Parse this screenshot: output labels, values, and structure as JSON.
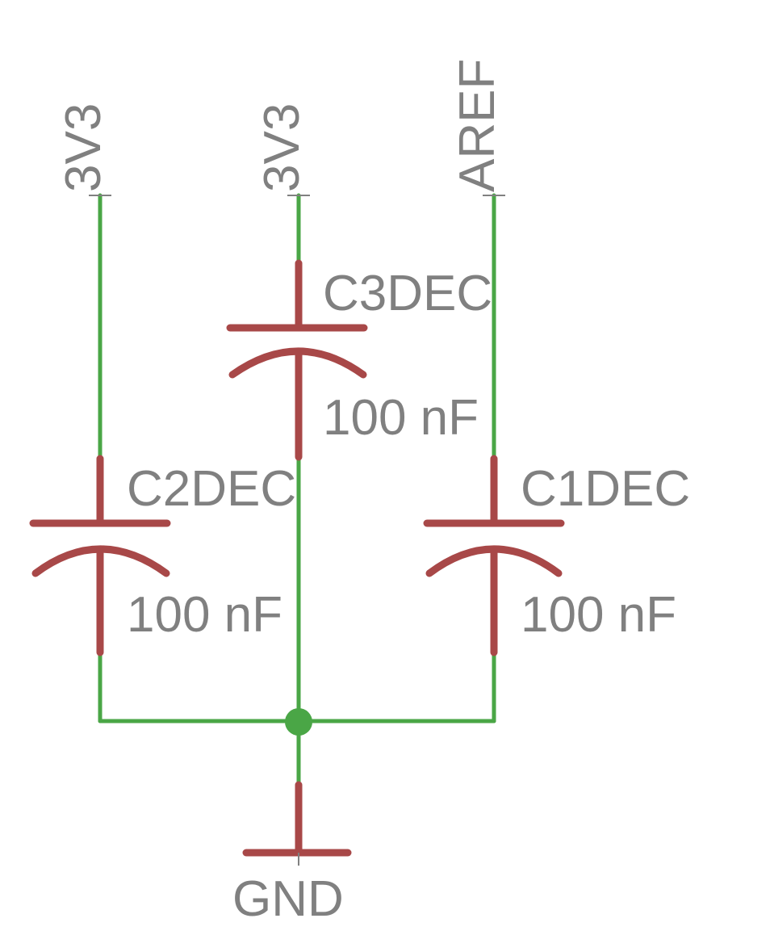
{
  "colors": {
    "wire": "#4aa646",
    "part": "#a84848",
    "text": "#808080",
    "background": "#ffffff"
  },
  "nets": {
    "left_supply": "3V3",
    "middle_supply": "3V3",
    "right_supply": "AREF",
    "ground": "GND"
  },
  "capacitors": [
    {
      "name": "C3DEC",
      "value": "100 nF"
    },
    {
      "name": "C2DEC",
      "value": "100 nF"
    },
    {
      "name": "C1DEC",
      "value": "100 nF"
    }
  ]
}
